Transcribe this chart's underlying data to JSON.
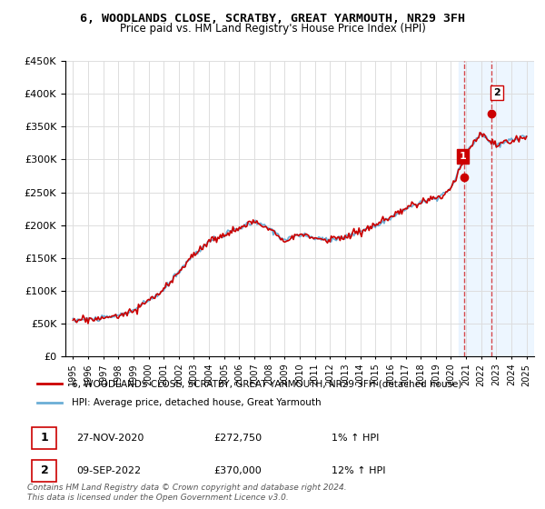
{
  "title_line1": "6, WOODLANDS CLOSE, SCRATBY, GREAT YARMOUTH, NR29 3FH",
  "title_line2": "Price paid vs. HM Land Registry's House Price Index (HPI)",
  "legend_line1": "6, WOODLANDS CLOSE, SCRATBY, GREAT YARMOUTH, NR29 3FH (detached house)",
  "legend_line2": "HPI: Average price, detached house, Great Yarmouth",
  "annotation1_date": "27-NOV-2020",
  "annotation1_price": "£272,750",
  "annotation1_hpi": "1% ↑ HPI",
  "annotation2_date": "09-SEP-2022",
  "annotation2_price": "£370,000",
  "annotation2_hpi": "12% ↑ HPI",
  "footer": "Contains HM Land Registry data © Crown copyright and database right 2024.\nThis data is licensed under the Open Government Licence v3.0.",
  "hpi_color": "#6baed6",
  "price_color": "#cc0000",
  "highlight_color": "#ddeeff",
  "ylim": [
    0,
    450000
  ],
  "yticks": [
    0,
    50000,
    100000,
    150000,
    200000,
    250000,
    300000,
    350000,
    400000,
    450000
  ],
  "sale1_year": 2020.9,
  "sale1_value": 272750,
  "sale2_year": 2022.7,
  "sale2_value": 370000
}
